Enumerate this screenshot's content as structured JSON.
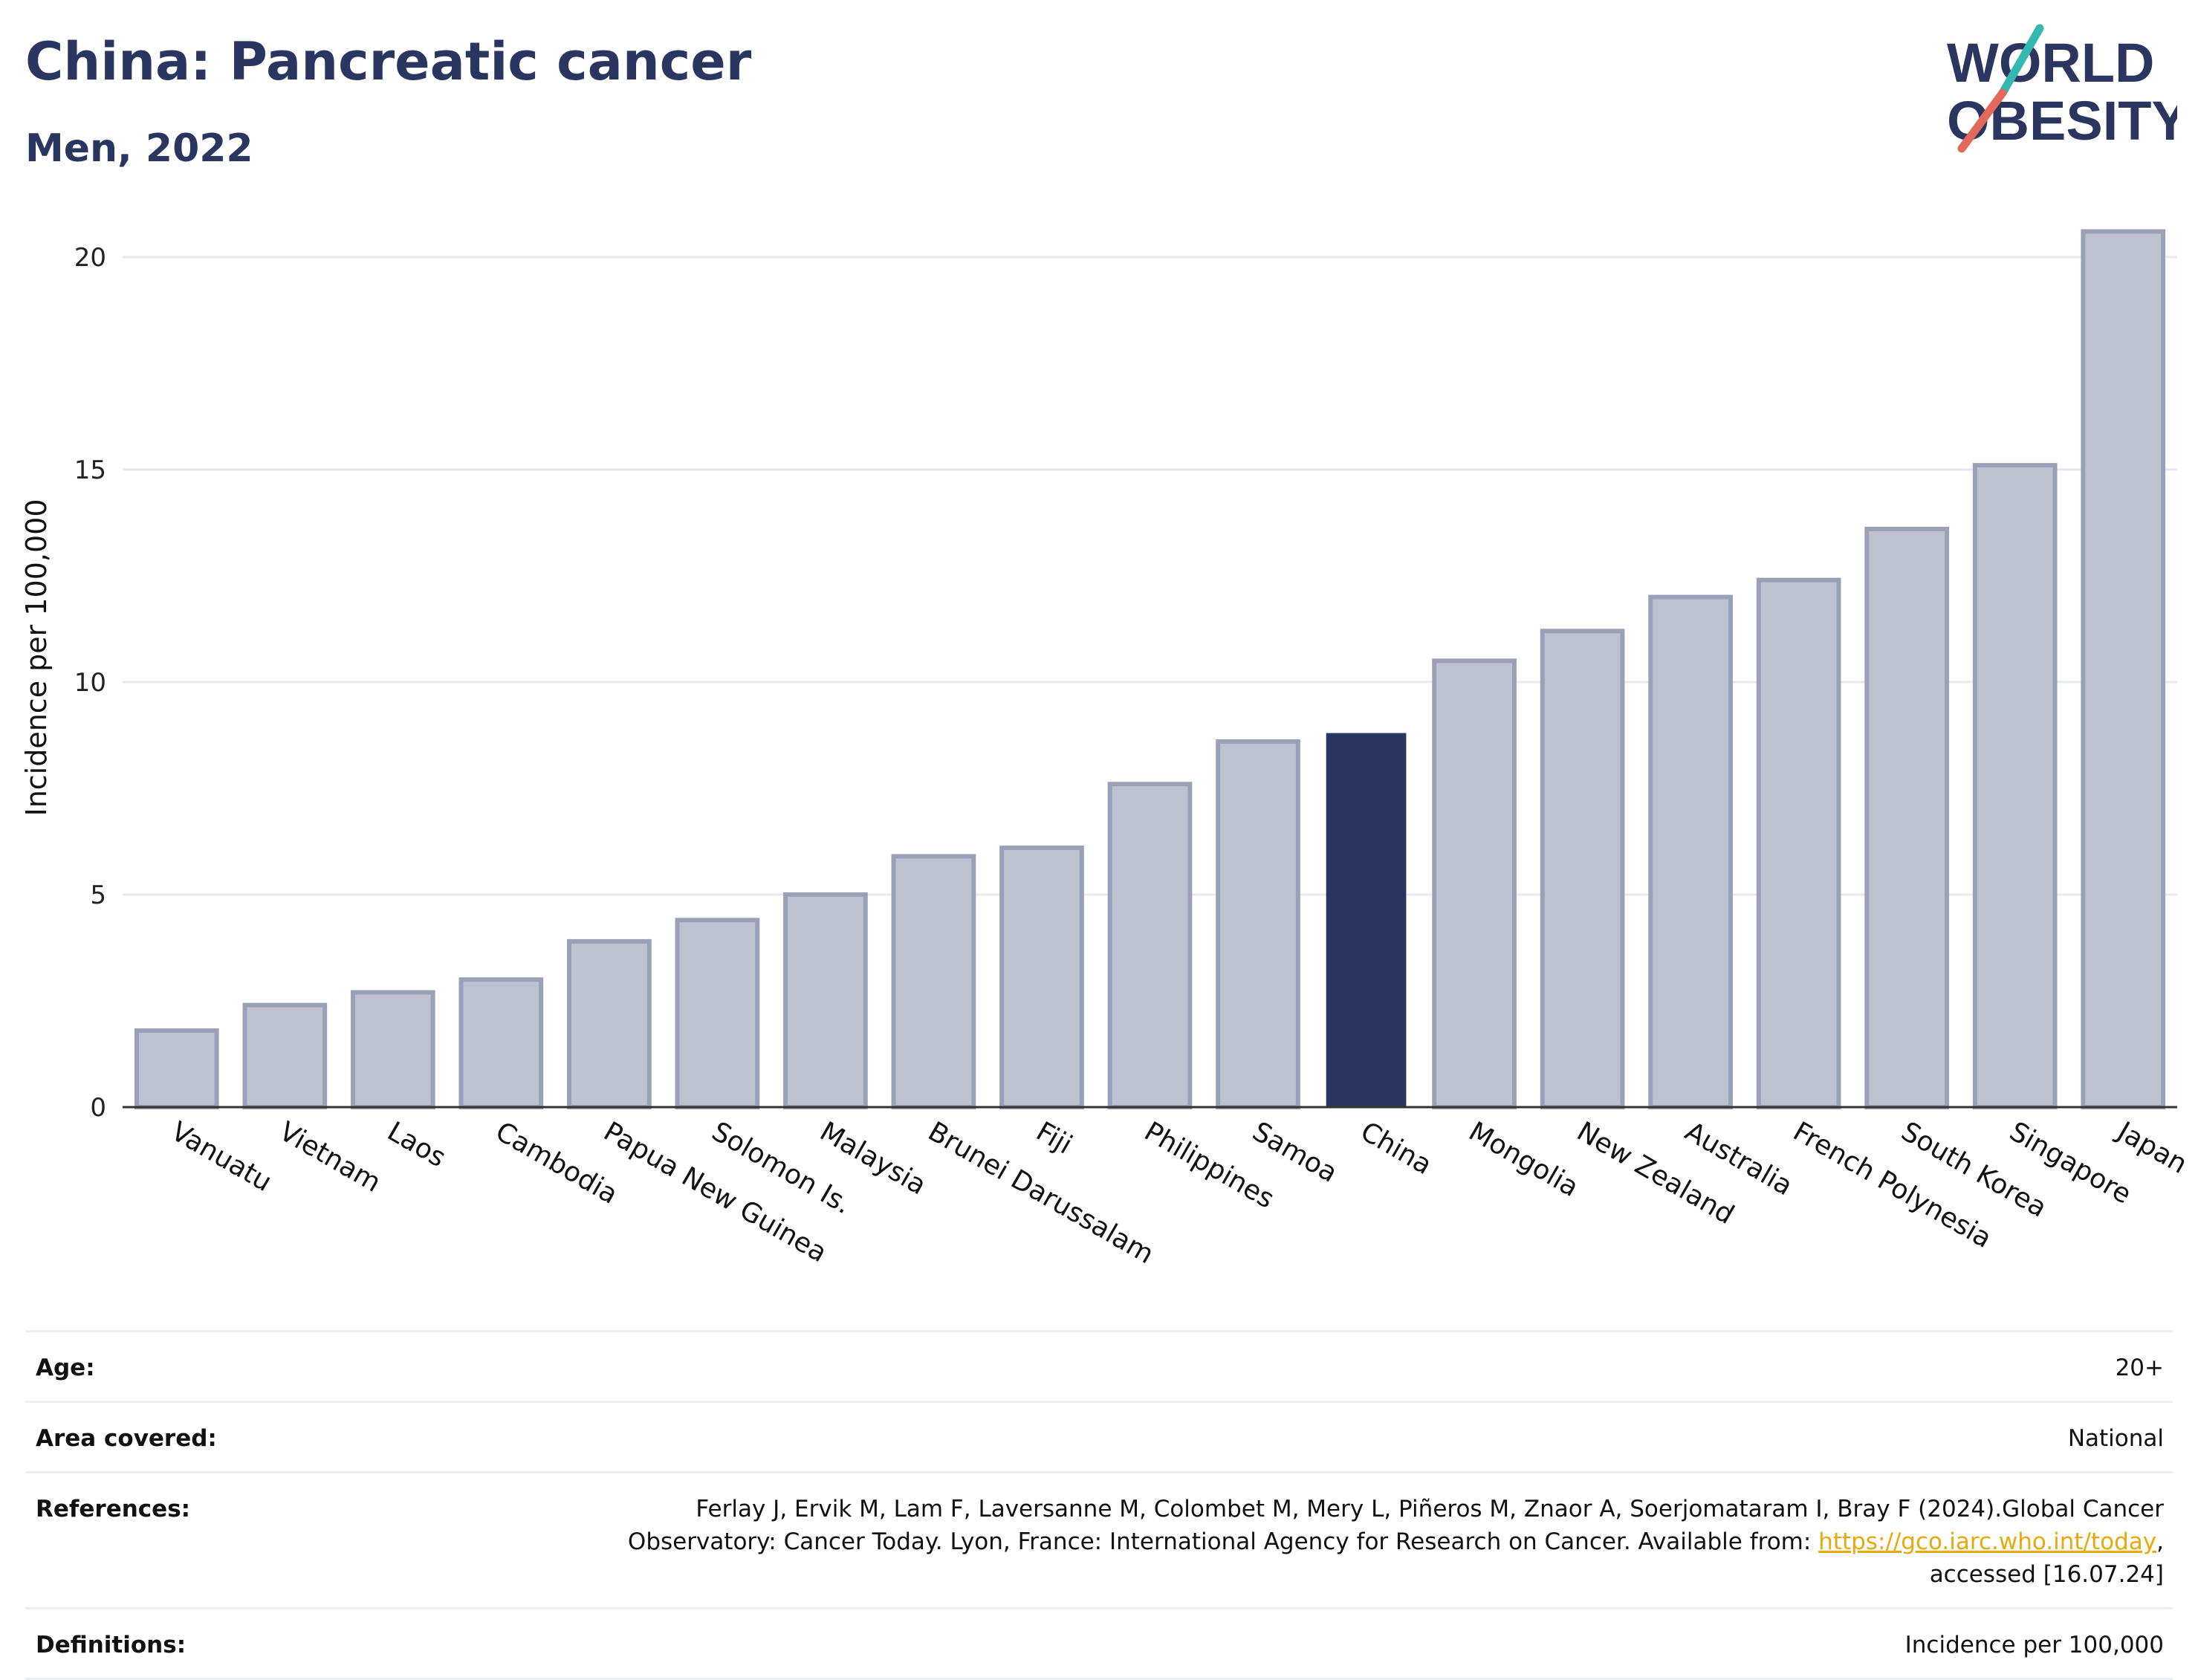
{
  "title": "China: Pancreatic cancer",
  "subtitle": "Men, 2022",
  "logo": {
    "line1": "WORLD",
    "line2": "OBESITY"
  },
  "colors": {
    "bar": "#bec2d0",
    "bar_border": "#9aa0b7",
    "highlight": "#293561",
    "title": "#2a3560",
    "gridline": "#e8e9ef",
    "link": "#e9a90c",
    "logo_teal": "#35b8b0",
    "logo_coral": "#e36a5a"
  },
  "chart_data": {
    "type": "bar",
    "title": "China: Pancreatic cancer",
    "subtitle": "Men, 2022",
    "xlabel": "",
    "ylabel": "Incidence per 100,000",
    "ylim": [
      0,
      21.5
    ],
    "yticks": [
      0,
      5,
      10,
      15,
      20
    ],
    "grid": true,
    "highlight": "China",
    "categories": [
      "Vanuatu",
      "Vietnam",
      "Laos",
      "Cambodia",
      "Papua New Guinea",
      "Solomon Is.",
      "Malaysia",
      "Brunei Darussalam",
      "Fiji",
      "Philippines",
      "Samoa",
      "China",
      "Mongolia",
      "New Zealand",
      "Australia",
      "French Polynesia",
      "South Korea",
      "Singapore",
      "Japan"
    ],
    "values": [
      1.8,
      2.4,
      2.7,
      3.0,
      3.9,
      4.4,
      5.0,
      5.9,
      6.1,
      7.6,
      8.6,
      8.8,
      10.5,
      11.2,
      12.0,
      12.4,
      13.6,
      15.1,
      20.6
    ]
  },
  "info": [
    {
      "label": "Age:",
      "value": "20+"
    },
    {
      "label": "Area covered:",
      "value": "National"
    },
    {
      "label": "References:",
      "value_before": "Ferlay J, Ervik M, Lam F, Laversanne M, Colombet M, Mery L, Piñeros M, Znaor A, Soerjomataram I, Bray F (2024).Global Cancer Observatory: Cancer Today. Lyon, France: International Agency for Research on Cancer. Available from: ",
      "link": "https://gco.iarc.who.int/today",
      "value_after": ", accessed [16.07.24]"
    },
    {
      "label": "Definitions:",
      "value": "Incidence per 100,000"
    }
  ]
}
